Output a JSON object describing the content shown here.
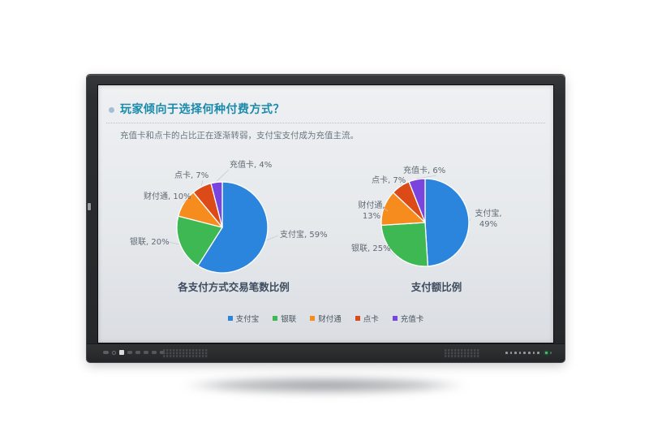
{
  "device": {
    "kind": "interactive flat-panel display",
    "power_led_color": "#35c96b",
    "front_button_count": 8
  },
  "slide": {
    "title": "玩家倾向于选择何种付费方式？",
    "subtitle": "充值卡和点卡的占比正在逐渐转弱，支付宝支付成为充值主流。",
    "title_color": "#1a8aab"
  },
  "chart_data": [
    {
      "type": "pie",
      "title": "各支付方式交易笔数比例",
      "categories": [
        "支付宝",
        "银联",
        "财付通",
        "点卡",
        "充值卡"
      ],
      "values": [
        59,
        20,
        10,
        7,
        4
      ],
      "unit": "%",
      "colors": [
        "#2b85dd",
        "#3db853",
        "#f78c1e",
        "#dc4a17",
        "#7a44de"
      ],
      "start_angle_deg": 0,
      "clockwise": true,
      "slice_labels": [
        [
          "支付宝, 59%"
        ],
        [
          "银联, 20%"
        ],
        [
          "财付通, 10%"
        ],
        [
          "点卡, 7%"
        ],
        [
          "充值卡, 4%"
        ]
      ],
      "legend_position": "shared-bottom"
    },
    {
      "type": "pie",
      "title": "支付额比例",
      "categories": [
        "支付宝",
        "银联",
        "财付通",
        "点卡",
        "充值卡"
      ],
      "values": [
        49,
        25,
        13,
        7,
        6
      ],
      "unit": "%",
      "colors": [
        "#2b85dd",
        "#3db853",
        "#f78c1e",
        "#dc4a17",
        "#7a44de"
      ],
      "start_angle_deg": 0,
      "clockwise": true,
      "slice_labels": [
        [
          "支付宝,",
          "49%"
        ],
        [
          "银联, 25%"
        ],
        [
          "财付通,",
          "13%"
        ],
        [
          "点卡, 7%"
        ],
        [
          "充值卡, 6%"
        ]
      ],
      "legend_position": "shared-bottom"
    }
  ],
  "legend": [
    {
      "label": "支付宝",
      "color": "#2b85dd"
    },
    {
      "label": "银联",
      "color": "#3db853"
    },
    {
      "label": "财付通",
      "color": "#f78c1e"
    },
    {
      "label": "点卡",
      "color": "#dc4a17"
    },
    {
      "label": "充值卡",
      "color": "#7a44de"
    }
  ]
}
